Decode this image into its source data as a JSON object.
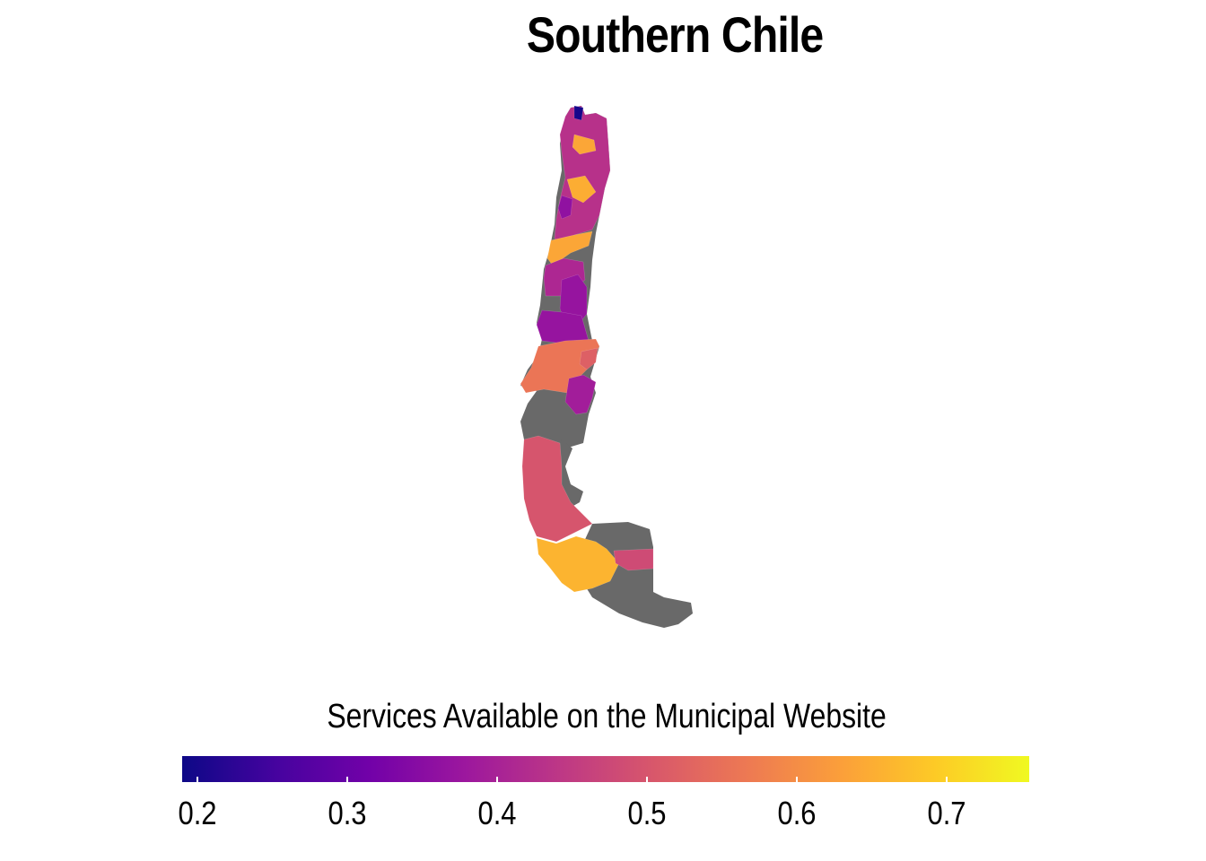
{
  "title": "Southern Chile",
  "legend": {
    "title": "Services Available on the Municipal Website",
    "min": 0.19,
    "max": 0.755,
    "ticks": [
      {
        "value": 0.2,
        "label": "0.2"
      },
      {
        "value": 0.3,
        "label": "0.3"
      },
      {
        "value": 0.4,
        "label": "0.4"
      },
      {
        "value": 0.5,
        "label": "0.5"
      },
      {
        "value": 0.6,
        "label": "0.6"
      },
      {
        "value": 0.7,
        "label": "0.7"
      }
    ],
    "palette": [
      "#0d0887",
      "#46039f",
      "#7201a8",
      "#9c179e",
      "#bd3786",
      "#d8576b",
      "#ed7953",
      "#fb9f3a",
      "#fdca26",
      "#f0f921"
    ]
  },
  "missing_color": "#696969",
  "chart_data": {
    "type": "choropleth",
    "title": "Southern Chile",
    "legend_title": "Services Available on the Municipal Website",
    "color_scale": "plasma",
    "range": [
      0.19,
      0.755
    ],
    "regions": [
      {
        "id": "north-mix",
        "value": 0.43
      },
      {
        "id": "north-orange-a",
        "value": 0.64
      },
      {
        "id": "north-orange-b",
        "value": 0.65
      },
      {
        "id": "north-purple-a",
        "value": 0.36
      },
      {
        "id": "north-dark",
        "value": 0.2
      },
      {
        "id": "mid-orange-band",
        "value": 0.64
      },
      {
        "id": "mid-magenta",
        "value": 0.41
      },
      {
        "id": "mid-purple",
        "value": 0.37
      },
      {
        "id": "lower-purple",
        "value": 0.37
      },
      {
        "id": "chiloe-orange",
        "value": 0.56
      },
      {
        "id": "aysen-purple",
        "value": 0.39
      },
      {
        "id": "aysen-red",
        "value": 0.52
      },
      {
        "id": "magallanes-red",
        "value": 0.5
      },
      {
        "id": "magallanes-yellow",
        "value": 0.66
      },
      {
        "id": "east-red",
        "value": 0.48
      }
    ]
  }
}
